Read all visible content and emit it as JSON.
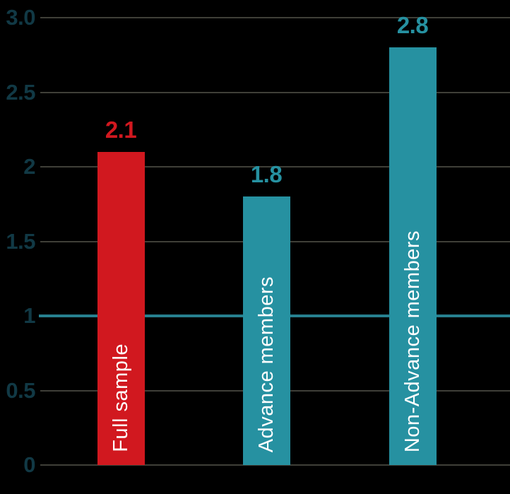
{
  "chart_data": {
    "type": "bar",
    "title": "",
    "xlabel": "",
    "ylabel": "",
    "categories": [
      "Full sample",
      "Advance members",
      "Non-Advance members"
    ],
    "values": [
      2.1,
      1.8,
      2.8
    ],
    "value_labels": [
      "2.1",
      "1.8",
      "2.8"
    ],
    "bar_colors": [
      "#D1181F",
      "#2691A1",
      "#2691A1"
    ],
    "value_label_colors": [
      "#D1181F",
      "#2691A1",
      "#2691A1"
    ],
    "bar_text_color": "#FFFFFF",
    "ylim": [
      0,
      3
    ],
    "yticks": [
      0,
      0.5,
      1,
      1.5,
      2,
      2.5,
      3
    ],
    "ytick_labels": [
      "0",
      "0.5",
      "1",
      "1.5",
      "2",
      "2.5",
      "3.0"
    ],
    "tick_label_color": "#113945",
    "grid": true,
    "gridline_color": "#3F3F38",
    "background_color": "#000000",
    "legend": "none",
    "reference_line": {
      "value": 1,
      "color": "#27808F"
    }
  }
}
